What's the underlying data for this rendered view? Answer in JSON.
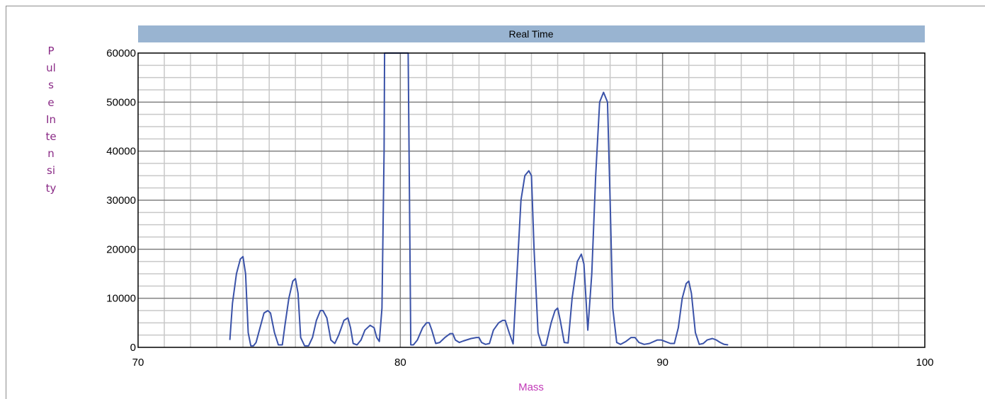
{
  "chart_data": {
    "type": "line",
    "title": "Real Time",
    "xlabel": "Mass",
    "ylabel": "Pulse Intensity",
    "xlim": [
      70,
      100
    ],
    "ylim": [
      0,
      60000
    ],
    "x_ticks": [
      70,
      80,
      90,
      100
    ],
    "y_ticks": [
      0,
      10000,
      20000,
      30000,
      40000,
      50000,
      60000
    ],
    "x_minor_step": 1,
    "y_minor_step": 2500,
    "grid": true,
    "colors": {
      "line": "#3a52a8",
      "title_bar": "#99b4d1",
      "grid_minor": "#c8c8c8",
      "grid_major": "#808080",
      "ylabel": "#8a2a86",
      "xlabel": "#c23ab8"
    },
    "series": [
      {
        "x": [
          73.5,
          73.6,
          73.75,
          73.9,
          74.0,
          74.1,
          74.2,
          74.3,
          74.4,
          74.5,
          74.65,
          74.8,
          74.95,
          75.05,
          75.2,
          75.35,
          75.5,
          75.6,
          75.75,
          75.9,
          76.0,
          76.1,
          76.2,
          76.35,
          76.5,
          76.65,
          76.8,
          76.95,
          77.05,
          77.2,
          77.35,
          77.5,
          77.65,
          77.85,
          78.0,
          78.1,
          78.2,
          78.35,
          78.5,
          78.65,
          78.85,
          79.0,
          79.1,
          79.2,
          79.3,
          79.38,
          79.4,
          79.45,
          79.5,
          79.55,
          80.25,
          80.3,
          80.35,
          80.4,
          80.5,
          80.65,
          80.85,
          81.0,
          81.1,
          81.2,
          81.35,
          81.5,
          81.7,
          81.9,
          82.0,
          82.1,
          82.25,
          82.4,
          82.7,
          82.9,
          83.0,
          83.1,
          83.25,
          83.4,
          83.55,
          83.75,
          83.9,
          84.0,
          84.15,
          84.3,
          84.45,
          84.6,
          84.75,
          84.9,
          85.0,
          85.1,
          85.25,
          85.4,
          85.55,
          85.75,
          85.9,
          86.0,
          86.1,
          86.25,
          86.4,
          86.55,
          86.75,
          86.9,
          87.0,
          87.15,
          87.3,
          87.45,
          87.6,
          87.75,
          87.9,
          88.0,
          88.1,
          88.25,
          88.4,
          88.6,
          88.8,
          88.95,
          89.1,
          89.3,
          89.5,
          89.8,
          89.95,
          90.1,
          90.3,
          90.45,
          90.6,
          90.75,
          90.9,
          91.0,
          91.1,
          91.25,
          91.4,
          91.55,
          91.7,
          91.9,
          92.05,
          92.2,
          92.35,
          92.5
        ],
        "y": [
          1500,
          9000,
          15000,
          18000,
          18500,
          15000,
          3000,
          300,
          300,
          1000,
          4000,
          7000,
          7500,
          7000,
          3000,
          500,
          500,
          4500,
          10000,
          13500,
          14000,
          11000,
          2000,
          300,
          300,
          2000,
          5500,
          7500,
          7500,
          6000,
          1500,
          800,
          2500,
          5500,
          6000,
          4000,
          800,
          500,
          1500,
          3500,
          4500,
          4000,
          2000,
          1200,
          8000,
          40000,
          60000,
          60000,
          60000,
          60000,
          60000,
          60000,
          30000,
          500,
          500,
          1500,
          4000,
          5000,
          5000,
          3500,
          800,
          1000,
          2000,
          2800,
          2800,
          1500,
          1000,
          1300,
          1800,
          2000,
          2000,
          1000,
          600,
          800,
          3500,
          5000,
          5500,
          5500,
          3000,
          700,
          15000,
          30000,
          35000,
          36000,
          35000,
          20000,
          3000,
          400,
          400,
          5000,
          7500,
          8000,
          5500,
          1000,
          900,
          10000,
          17500,
          19000,
          17000,
          3500,
          15000,
          35000,
          50000,
          52000,
          50000,
          30000,
          8000,
          1000,
          600,
          1200,
          2000,
          2000,
          1000,
          600,
          800,
          1500,
          1500,
          1200,
          800,
          800,
          4000,
          10000,
          13000,
          13500,
          11000,
          3000,
          600,
          800,
          1500,
          1800,
          1500,
          1000,
          600,
          500
        ]
      }
    ]
  }
}
